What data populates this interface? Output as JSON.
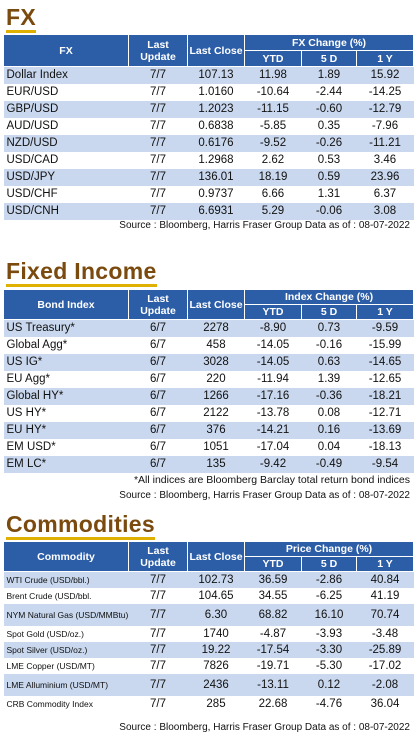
{
  "fx": {
    "title": "FX",
    "headers": {
      "name": "FX",
      "last_update": "Last Update",
      "last_close": "Last Close",
      "change_group": "FX Change (%)",
      "ytd": "YTD",
      "d5": "5 D",
      "y1": "1 Y"
    },
    "rows": [
      {
        "name": "Dollar Index",
        "update": "7/7",
        "close": "107.13",
        "ytd": "11.98",
        "d5": "1.89",
        "y1": "15.92"
      },
      {
        "name": "EUR/USD",
        "update": "7/7",
        "close": "1.0160",
        "ytd": "-10.64",
        "d5": "-2.44",
        "y1": "-14.25"
      },
      {
        "name": "GBP/USD",
        "update": "7/7",
        "close": "1.2023",
        "ytd": "-11.15",
        "d5": "-0.60",
        "y1": "-12.79"
      },
      {
        "name": "AUD/USD",
        "update": "7/7",
        "close": "0.6838",
        "ytd": "-5.85",
        "d5": "0.35",
        "y1": "-7.96"
      },
      {
        "name": "NZD/USD",
        "update": "7/7",
        "close": "0.6176",
        "ytd": "-9.52",
        "d5": "-0.26",
        "y1": "-11.21"
      },
      {
        "name": "USD/CAD",
        "update": "7/7",
        "close": "1.2968",
        "ytd": "2.62",
        "d5": "0.53",
        "y1": "3.46"
      },
      {
        "name": "USD/JPY",
        "update": "7/7",
        "close": "136.01",
        "ytd": "18.19",
        "d5": "0.59",
        "y1": "23.96"
      },
      {
        "name": "USD/CHF",
        "update": "7/7",
        "close": "0.9737",
        "ytd": "6.66",
        "d5": "1.31",
        "y1": "6.37"
      },
      {
        "name": "USD/CNH",
        "update": "7/7",
        "close": "6.6931",
        "ytd": "5.29",
        "d5": "-0.06",
        "y1": "3.08"
      }
    ],
    "source": "Source : Bloomberg, Harris Fraser Group Data as of : 08-07-2022"
  },
  "fixed_income": {
    "title": "Fixed Income",
    "headers": {
      "name": "Bond Index",
      "last_update": "Last Update",
      "last_close": "Last Close",
      "change_group": "Index Change (%)",
      "ytd": "YTD",
      "d5": "5 D",
      "y1": "1 Y"
    },
    "rows": [
      {
        "name": "US Treasury*",
        "update": "6/7",
        "close": "2278",
        "ytd": "-8.90",
        "d5": "0.73",
        "y1": "-9.59"
      },
      {
        "name": "Global Agg*",
        "update": "6/7",
        "close": "458",
        "ytd": "-14.05",
        "d5": "-0.16",
        "y1": "-15.99"
      },
      {
        "name": "US IG*",
        "update": "6/7",
        "close": "3028",
        "ytd": "-14.05",
        "d5": "0.63",
        "y1": "-14.65"
      },
      {
        "name": "EU Agg*",
        "update": "6/7",
        "close": "220",
        "ytd": "-11.94",
        "d5": "1.39",
        "y1": "-12.65"
      },
      {
        "name": "Global HY*",
        "update": "6/7",
        "close": "1266",
        "ytd": "-17.16",
        "d5": "-0.36",
        "y1": "-18.21"
      },
      {
        "name": "US HY*",
        "update": "6/7",
        "close": "2122",
        "ytd": "-13.78",
        "d5": "0.08",
        "y1": "-12.71"
      },
      {
        "name": "EU HY*",
        "update": "6/7",
        "close": "376",
        "ytd": "-14.21",
        "d5": "0.16",
        "y1": "-13.69"
      },
      {
        "name": "EM USD*",
        "update": "6/7",
        "close": "1051",
        "ytd": "-17.04",
        "d5": "0.04",
        "y1": "-18.13"
      },
      {
        "name": "EM LC*",
        "update": "6/7",
        "close": "135",
        "ytd": "-9.42",
        "d5": "-0.49",
        "y1": "-9.54"
      }
    ],
    "note": "*All indices are Bloomberg Barclay total return bond indices",
    "source": "Source : Bloomberg, Harris Fraser Group Data as of : 08-07-2022"
  },
  "commodities": {
    "title": "Commodities",
    "headers": {
      "name": "Commodity",
      "last_update": "Last Update",
      "last_close": "Last Close",
      "change_group": "Price Change (%)",
      "ytd": "YTD",
      "d5": "5 D",
      "y1": "1 Y"
    },
    "rows": [
      {
        "name": "WTI Crude (USD/bbl.)",
        "update": "7/7",
        "close": "102.73",
        "ytd": "36.59",
        "d5": "-2.86",
        "y1": "40.84"
      },
      {
        "name": "Brent Crude (USD/bbl.",
        "update": "7/7",
        "close": "104.65",
        "ytd": "34.55",
        "d5": "-6.25",
        "y1": "41.19"
      },
      {
        "name": "NYM Natural Gas (USD/MMBtu)",
        "update": "7/7",
        "close": "6.30",
        "ytd": "68.82",
        "d5": "16.10",
        "y1": "70.74"
      },
      {
        "name": "Spot Gold (USD/oz.)",
        "update": "7/7",
        "close": "1740",
        "ytd": "-4.87",
        "d5": "-3.93",
        "y1": "-3.48"
      },
      {
        "name": "Spot Silver (USD/oz.)",
        "update": "7/7",
        "close": "19.22",
        "ytd": "-17.54",
        "d5": "-3.30",
        "y1": "-25.89"
      },
      {
        "name": "LME Copper (USD/MT)",
        "update": "7/7",
        "close": "7826",
        "ytd": "-19.71",
        "d5": "-5.30",
        "y1": "-17.02"
      },
      {
        "name": "LME Alluminium (USD/MT)",
        "update": "7/7",
        "close": "2436",
        "ytd": "-13.11",
        "d5": "0.12",
        "y1": "-2.08"
      },
      {
        "name": "CRB Commodity Index",
        "update": "7/7",
        "close": "285",
        "ytd": "22.68",
        "d5": "-4.76",
        "y1": "36.04"
      }
    ],
    "source": "Source : Bloomberg, Harris Fraser Group Data as of : 08-07-2022"
  }
}
